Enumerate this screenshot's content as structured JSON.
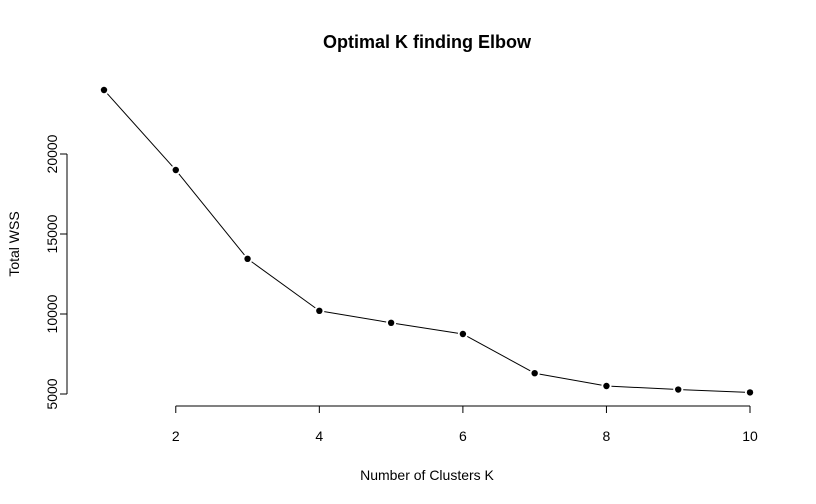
{
  "chart_data": {
    "type": "line",
    "title": "Optimal K finding Elbow",
    "xlabel": "Number of Clusters K",
    "ylabel": "Total WSS",
    "x": [
      1,
      2,
      3,
      4,
      5,
      6,
      7,
      8,
      9,
      10
    ],
    "series": [
      {
        "values": [
          24000,
          19000,
          13450,
          10200,
          9450,
          8750,
          6300,
          5500,
          5280,
          5100
        ]
      }
    ],
    "xlim": [
      1,
      10
    ],
    "ylim": [
      5000,
      24000
    ],
    "x_ticks": [
      2,
      4,
      6,
      8,
      10
    ],
    "y_ticks": [
      5000,
      10000,
      15000,
      20000
    ],
    "grid": false,
    "marker": "filled-circle",
    "line_color": "#000000"
  }
}
